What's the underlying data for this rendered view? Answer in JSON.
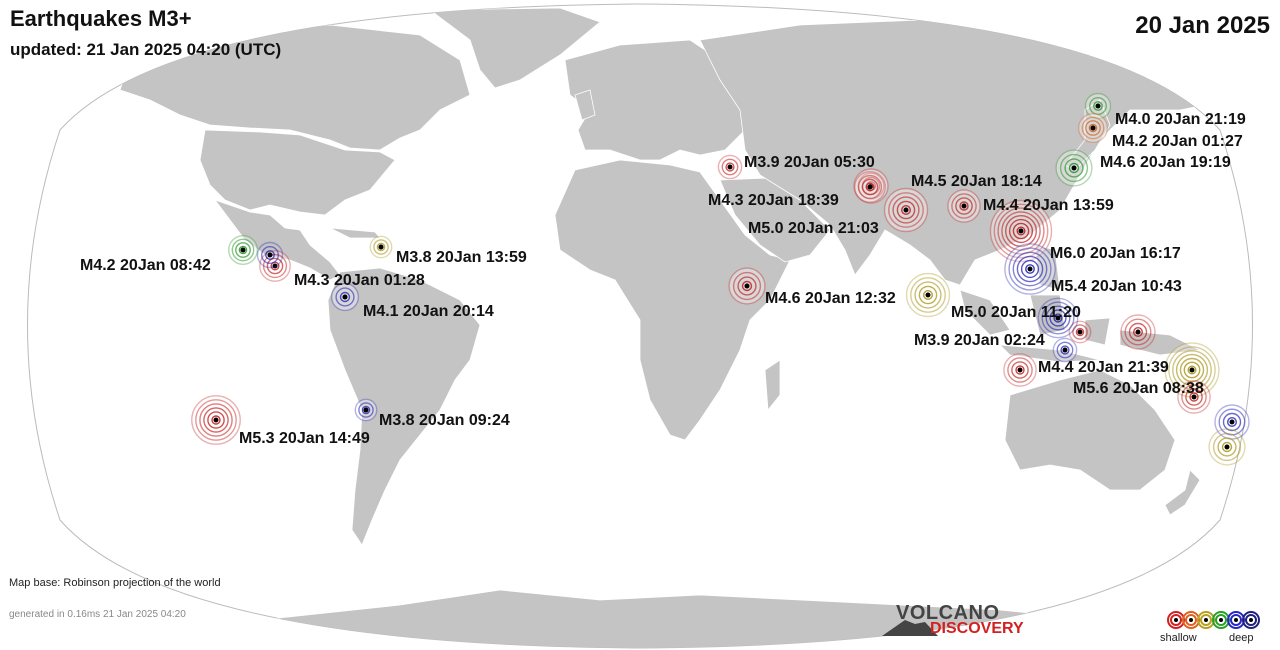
{
  "header": {
    "title": "Earthquakes M3+",
    "updated": "updated: 21 Jan 2025 04:20 (UTC)",
    "date": "20 Jan 2025"
  },
  "footer": {
    "map_base": "Map base: Robinson projection of the world",
    "generated": "generated in 0.16ms 21 Jan 2025 04:20"
  },
  "logo": {
    "line1": "VOLCANO",
    "line2": "DISCOVERY"
  },
  "legend": {
    "shallow": "shallow",
    "deep": "deep",
    "depth_colors": [
      "#d32020",
      "#e06020",
      "#b8a020",
      "#28a028",
      "#2828c8",
      "#202080"
    ]
  },
  "colors": {
    "land": "#c4c4c4",
    "ocean": "#ffffff",
    "border": "#ffffff",
    "outline": "#bbbbbb"
  },
  "quakes": [
    {
      "label": "M4.0 20Jan 21:19",
      "mag": 4.0,
      "depth": "green"
    },
    {
      "label": "M4.2 20Jan 01:27",
      "mag": 4.2,
      "depth": "orange"
    },
    {
      "label": "M4.6 20Jan 19:19",
      "mag": 4.6,
      "depth": "green"
    },
    {
      "label": "M3.9 20Jan 05:30",
      "mag": 3.9,
      "depth": "red"
    },
    {
      "label": "M4.5 20Jan 18:14",
      "mag": 4.5,
      "depth": "red"
    },
    {
      "label": "M4.3 20Jan 18:39",
      "mag": 4.3,
      "depth": "red"
    },
    {
      "label": "M4.4 20Jan 13:59",
      "mag": 4.4,
      "depth": "red"
    },
    {
      "label": "M5.0 20Jan 21:03",
      "mag": 5.0,
      "depth": "red"
    },
    {
      "label": "M6.0 20Jan 16:17",
      "mag": 6.0,
      "depth": "red"
    },
    {
      "label": "M5.4 20Jan 10:43",
      "mag": 5.4,
      "depth": "blue"
    },
    {
      "label": "M4.6 20Jan 12:32",
      "mag": 4.6,
      "depth": "red"
    },
    {
      "label": "M5.0 20Jan 11:20",
      "mag": 5.0,
      "depth": "yellow"
    },
    {
      "label": "M3.9 20Jan 02:24",
      "mag": 3.9,
      "depth": "blue"
    },
    {
      "label": "M4.4 20Jan 21:39",
      "mag": 4.4,
      "depth": "red"
    },
    {
      "label": "M5.6 20Jan 08:38",
      "mag": 5.6,
      "depth": "yellow"
    },
    {
      "label": "M3.8 20Jan 13:59",
      "mag": 3.8,
      "depth": "yellow"
    },
    {
      "label": "M4.2 20Jan 08:42",
      "mag": 4.2,
      "depth": "green"
    },
    {
      "label": "M4.3 20Jan 01:28",
      "mag": 4.3,
      "depth": "red"
    },
    {
      "label": "M4.1 20Jan 20:14",
      "mag": 4.1,
      "depth": "blue"
    },
    {
      "label": "M3.8 20Jan 09:24",
      "mag": 3.8,
      "depth": "blue"
    },
    {
      "label": "M5.3 20Jan 14:49",
      "mag": 5.3,
      "depth": "red"
    }
  ]
}
